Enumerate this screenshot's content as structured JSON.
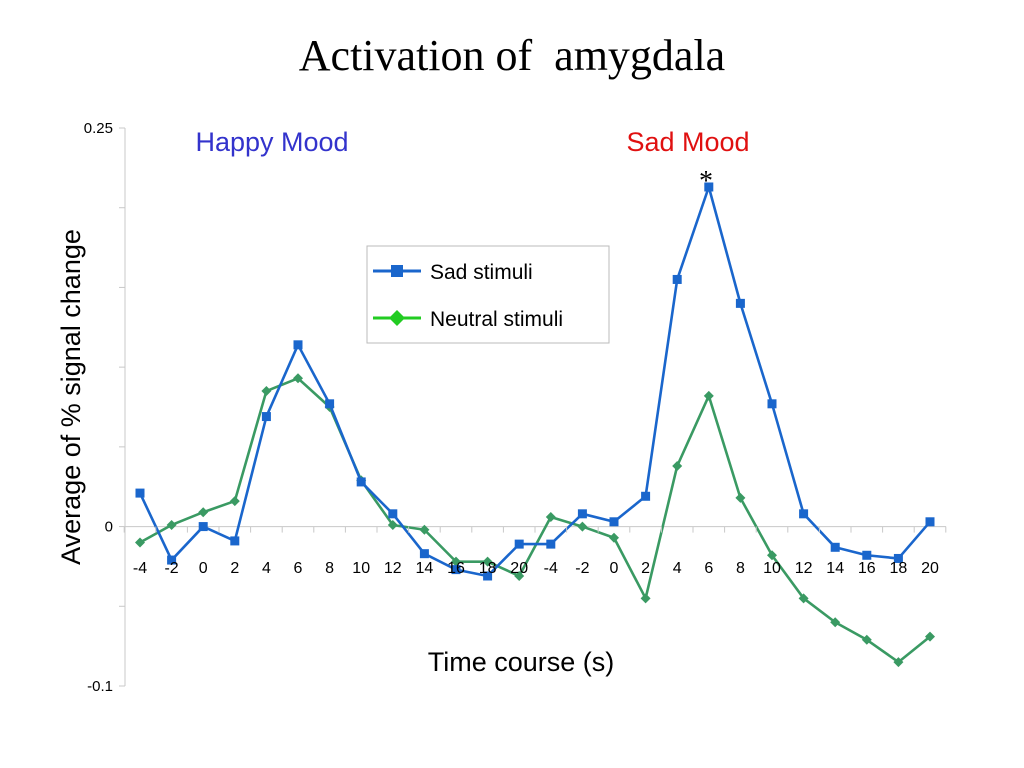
{
  "title": "Activation of  amygdala",
  "chart_data": {
    "type": "line",
    "title": "Activation of  amygdala",
    "xlabel": "Time course (s)",
    "ylabel": "Average of % signal change",
    "ylim": [
      -0.1,
      0.25
    ],
    "y_tick_labels": [
      "0.25",
      "0",
      "-0.1"
    ],
    "y_tick_values": [
      0.25,
      0,
      -0.1
    ],
    "categories": [
      "-4",
      "-2",
      "0",
      "2",
      "4",
      "6",
      "8",
      "10",
      "12",
      "14",
      "16",
      "18",
      "20",
      "-4",
      "-2",
      "0",
      "2",
      "4",
      "6",
      "8",
      "10",
      "12",
      "14",
      "16",
      "18",
      "20"
    ],
    "group_labels": [
      {
        "label": "Happy Mood",
        "color": "#3333cc"
      },
      {
        "label": "Sad Mood",
        "color": "#e01010"
      }
    ],
    "annotation": "*",
    "legend_position": "top-center",
    "series": [
      {
        "name": "Sad stimuli",
        "color": "#1a66cc",
        "marker": "square",
        "values": [
          0.021,
          -0.021,
          0.0,
          -0.009,
          0.069,
          0.114,
          0.077,
          0.028,
          0.008,
          -0.017,
          -0.027,
          -0.031,
          -0.011,
          -0.011,
          0.008,
          0.003,
          0.019,
          0.155,
          0.213,
          0.14,
          0.077,
          0.008,
          -0.013,
          -0.018,
          -0.02,
          0.003
        ]
      },
      {
        "name": "Neutral stimuli",
        "color": "#3a9a63",
        "marker": "diamond",
        "values": [
          -0.01,
          0.001,
          0.009,
          0.016,
          0.085,
          0.093,
          0.075,
          0.029,
          0.001,
          -0.002,
          -0.022,
          -0.022,
          -0.031,
          0.006,
          0.0,
          -0.007,
          -0.045,
          0.038,
          0.082,
          0.018,
          -0.018,
          -0.045,
          -0.06,
          -0.071,
          -0.085,
          -0.069
        ]
      }
    ]
  }
}
